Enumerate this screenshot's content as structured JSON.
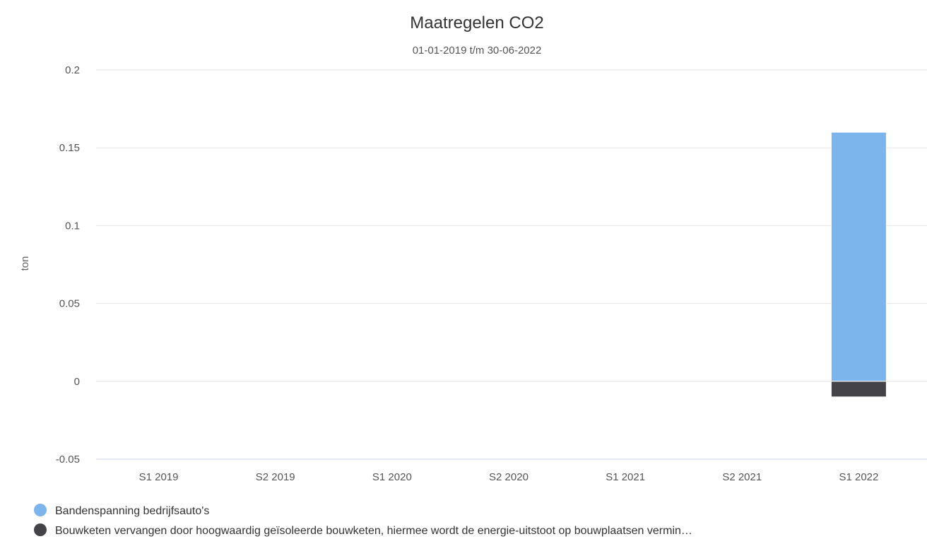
{
  "chart_data": {
    "type": "bar",
    "stacked": true,
    "title": "Maatregelen CO2",
    "subtitle": "01-01-2019 t/m 30-06-2022",
    "ylabel": "ton",
    "xlabel": "",
    "categories": [
      "S1 2019",
      "S2 2019",
      "S1 2020",
      "S2 2020",
      "S1 2021",
      "S2 2021",
      "S1 2022"
    ],
    "ylim": [
      -0.05,
      0.2
    ],
    "yticks": [
      "0.2",
      "0.15",
      "0.1",
      "0.05",
      "0",
      "-0.05"
    ],
    "grid": true,
    "legend_position": "bottom-left",
    "series": [
      {
        "name": "Bandenspanning bedrijfsauto's",
        "color": "#7cb5ec",
        "values": [
          0,
          0,
          0,
          0,
          0,
          0,
          0.16
        ]
      },
      {
        "name": "Bouwketen vervangen door hoogwaardig geïsoleerde bouwketen, hiermee wordt de energie-uitstoot op bouwplaatsen vermin…",
        "color": "#434348",
        "values": [
          0,
          0,
          0,
          0,
          0,
          0,
          -0.01
        ]
      }
    ]
  }
}
